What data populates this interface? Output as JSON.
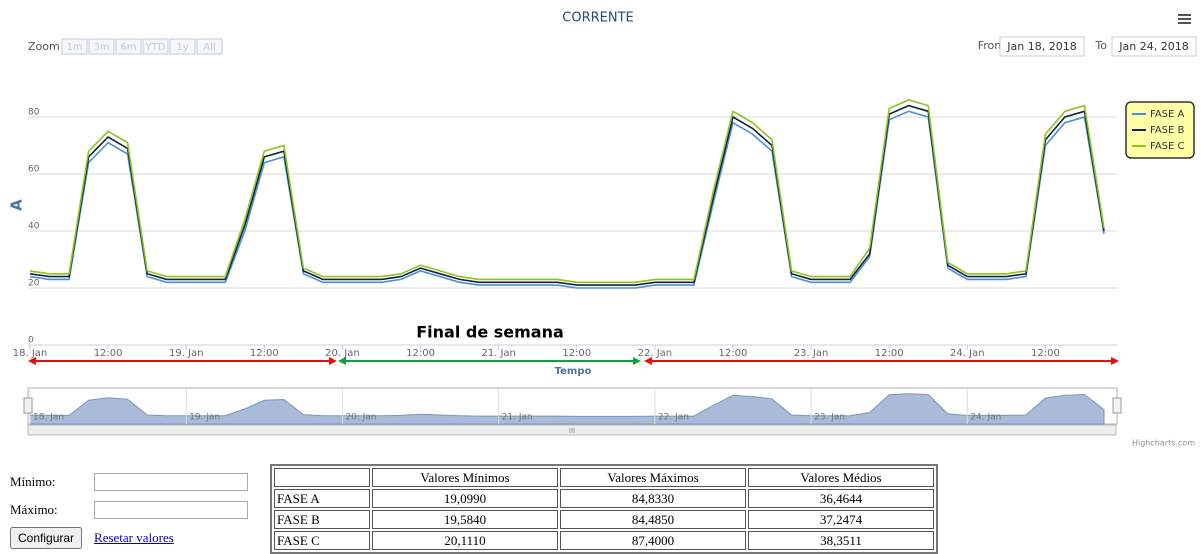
{
  "chart_data": {
    "type": "line",
    "title": "CORRENTE",
    "y_label": "A",
    "x_label": "Tempo",
    "annotation": "Final de semana",
    "credit": "Highcharts.com",
    "zoom_label": "Zoom",
    "zoom_buttons": [
      "1m",
      "3m",
      "6m",
      "YTD",
      "1y",
      "All"
    ],
    "from_label": "From",
    "from_value": "Jan 18, 2018",
    "to_label": "To",
    "to_value": "Jan 24, 2018",
    "x": [
      "2018-01-18 00:00",
      "2018-01-18 03:00",
      "2018-01-18 06:00",
      "2018-01-18 09:00",
      "2018-01-18 12:00",
      "2018-01-18 15:00",
      "2018-01-18 18:00",
      "2018-01-18 21:00",
      "2018-01-19 00:00",
      "2018-01-19 03:00",
      "2018-01-19 06:00",
      "2018-01-19 09:00",
      "2018-01-19 12:00",
      "2018-01-19 15:00",
      "2018-01-19 18:00",
      "2018-01-19 21:00",
      "2018-01-20 00:00",
      "2018-01-20 03:00",
      "2018-01-20 06:00",
      "2018-01-20 09:00",
      "2018-01-20 12:00",
      "2018-01-20 15:00",
      "2018-01-20 18:00",
      "2018-01-20 21:00",
      "2018-01-21 00:00",
      "2018-01-21 03:00",
      "2018-01-21 06:00",
      "2018-01-21 09:00",
      "2018-01-21 12:00",
      "2018-01-21 15:00",
      "2018-01-21 18:00",
      "2018-01-21 21:00",
      "2018-01-22 00:00",
      "2018-01-22 03:00",
      "2018-01-22 06:00",
      "2018-01-22 09:00",
      "2018-01-22 12:00",
      "2018-01-22 15:00",
      "2018-01-22 18:00",
      "2018-01-22 21:00",
      "2018-01-23 00:00",
      "2018-01-23 03:00",
      "2018-01-23 06:00",
      "2018-01-23 09:00",
      "2018-01-23 12:00",
      "2018-01-23 15:00",
      "2018-01-23 18:00",
      "2018-01-23 21:00",
      "2018-01-24 00:00",
      "2018-01-24 03:00",
      "2018-01-24 06:00",
      "2018-01-24 09:00",
      "2018-01-24 12:00",
      "2018-01-24 15:00",
      "2018-01-24 18:00",
      "2018-01-24 21:00"
    ],
    "series": [
      {
        "name": "FASE A",
        "color": "#4a8fd6",
        "values": [
          24,
          23,
          23,
          64,
          71,
          67,
          24,
          22,
          22,
          22,
          22,
          40,
          64,
          66,
          25,
          22,
          22,
          22,
          22,
          23,
          26,
          24,
          22,
          21,
          21,
          21,
          21,
          21,
          20,
          20,
          20,
          20,
          21,
          21,
          21,
          50,
          78,
          74,
          68,
          24,
          22,
          22,
          22,
          31,
          79,
          82,
          80,
          27,
          23,
          23,
          23,
          24,
          70,
          78,
          80,
          39
        ]
      },
      {
        "name": "FASE B",
        "color": "#14243f",
        "values": [
          25,
          24,
          24,
          66,
          73,
          69,
          25,
          23,
          23,
          23,
          23,
          42,
          66,
          68,
          26,
          23,
          23,
          23,
          23,
          24,
          27,
          25,
          23,
          22,
          22,
          22,
          22,
          22,
          21,
          21,
          21,
          21,
          22,
          22,
          22,
          52,
          80,
          76,
          70,
          25,
          23,
          23,
          23,
          32,
          81,
          84,
          82,
          28,
          24,
          24,
          24,
          25,
          72,
          80,
          82,
          40
        ]
      },
      {
        "name": "FASE C",
        "color": "#8fc31f",
        "values": [
          26,
          25,
          25,
          68,
          75,
          71,
          26,
          24,
          24,
          24,
          24,
          44,
          68,
          70,
          27,
          24,
          24,
          24,
          24,
          25,
          28,
          26,
          24,
          23,
          23,
          23,
          23,
          23,
          22,
          22,
          22,
          22,
          23,
          23,
          23,
          54,
          82,
          78,
          72,
          26,
          24,
          24,
          24,
          34,
          83,
          86,
          84,
          29,
          25,
          25,
          25,
          26,
          74,
          82,
          84,
          41
        ]
      }
    ],
    "xlim": [
      "2018-01-18 00:00",
      "2018-01-24 23:00"
    ],
    "xticks": [
      {
        "value": "2018-01-18 00:00",
        "label": "18. Jan"
      },
      {
        "value": "2018-01-18 12:00",
        "label": "12:00"
      },
      {
        "value": "2018-01-19 00:00",
        "label": "19. Jan"
      },
      {
        "value": "2018-01-19 12:00",
        "label": "12:00"
      },
      {
        "value": "2018-01-20 00:00",
        "label": "20. Jan"
      },
      {
        "value": "2018-01-20 12:00",
        "label": "12:00"
      },
      {
        "value": "2018-01-21 00:00",
        "label": "21. Jan"
      },
      {
        "value": "2018-01-21 12:00",
        "label": "12:00"
      },
      {
        "value": "2018-01-22 00:00",
        "label": "22. Jan"
      },
      {
        "value": "2018-01-22 12:00",
        "label": "12:00"
      },
      {
        "value": "2018-01-23 00:00",
        "label": "23. Jan"
      },
      {
        "value": "2018-01-23 12:00",
        "label": "12:00"
      },
      {
        "value": "2018-01-24 00:00",
        "label": "24. Jan"
      },
      {
        "value": "2018-01-24 12:00",
        "label": "12:00"
      }
    ],
    "ylim": [
      0,
      100
    ],
    "yticks": [
      0,
      20,
      40,
      60,
      80
    ],
    "grid": true,
    "legend": "right"
  },
  "form": {
    "min_label": "Mínimo:",
    "max_label": "Máximo:",
    "button": "Configurar",
    "reset": "Resetar valores"
  },
  "table": {
    "header": [
      "Valores Mínimos",
      "Valores Máximos",
      "Valores Médios"
    ],
    "rows": [
      [
        "FASE A",
        "19,0990",
        "84,8330",
        "36,4644"
      ],
      [
        "FASE B",
        "19,5840",
        "84,4850",
        "37,2474"
      ],
      [
        "FASE C",
        "20,1110",
        "87,4000",
        "38,3511"
      ]
    ]
  }
}
